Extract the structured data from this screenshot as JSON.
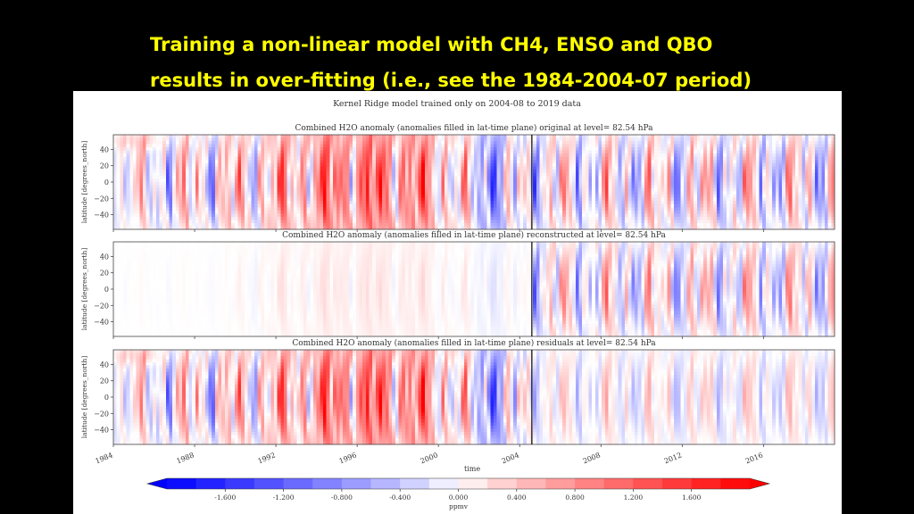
{
  "slide": {
    "title_line1": "Training a non-linear model with CH4, ENSO and QBO",
    "title_line2": "results in over-fitting (i.e., see the 1984-2004-07 period)"
  },
  "figure": {
    "suptitle": "Kernel Ridge model trained only on 2004-08 to 2019 data"
  },
  "chart_data": {
    "type": "heatmap",
    "colormap": "bwr",
    "colors": {
      "negative": "#0000ff",
      "neutral": "#ffffff",
      "positive": "#ff0000",
      "divider": "#000000",
      "axes": "#444444"
    },
    "x": {
      "label": "time",
      "range": [
        1984.0,
        2019.5
      ],
      "ticks": [
        1984,
        1988,
        1992,
        1996,
        2000,
        2004,
        2008,
        2012,
        2016
      ]
    },
    "y": {
      "label": "latitude [degrees_north]",
      "range": [
        -58,
        58
      ],
      "ticks": [
        40,
        20,
        0,
        -20,
        -40
      ],
      "tick_labels": [
        "40",
        "20",
        "0",
        "−20",
        "−40"
      ]
    },
    "training_split": 2004.6,
    "panels": [
      {
        "id": "original",
        "title": "Combined H2O anomaly (anomalies filled in lat-time plane) original at level= 82.54 hPa",
        "early_amp": 1.0,
        "late_amp": 1.0,
        "flat_until": 1986.5
      },
      {
        "id": "reconstructed",
        "title": "Combined H2O anomaly (anomalies filled in lat-time plane) reconstructed at level= 82.54 hPa",
        "early_amp": 0.12,
        "late_amp": 0.85,
        "flat_until": 1992.0
      },
      {
        "id": "residuals",
        "title": "Combined H2O anomaly (anomalies filled in lat-time plane) residuals at level= 82.54 hPa",
        "early_amp": 1.0,
        "late_amp": 0.45,
        "flat_until": 1986.5
      }
    ],
    "colorbar": {
      "label": "ppmv",
      "range": [
        -2.0,
        2.0
      ],
      "ticks": [
        -1.6,
        -1.2,
        -0.8,
        -0.4,
        0.0,
        0.4,
        0.8,
        1.2,
        1.6
      ],
      "tick_labels": [
        "-1.600",
        "-1.200",
        "-0.800",
        "-0.400",
        "0.000",
        "0.400",
        "0.800",
        "1.200",
        "1.600"
      ],
      "extend": "both"
    }
  }
}
